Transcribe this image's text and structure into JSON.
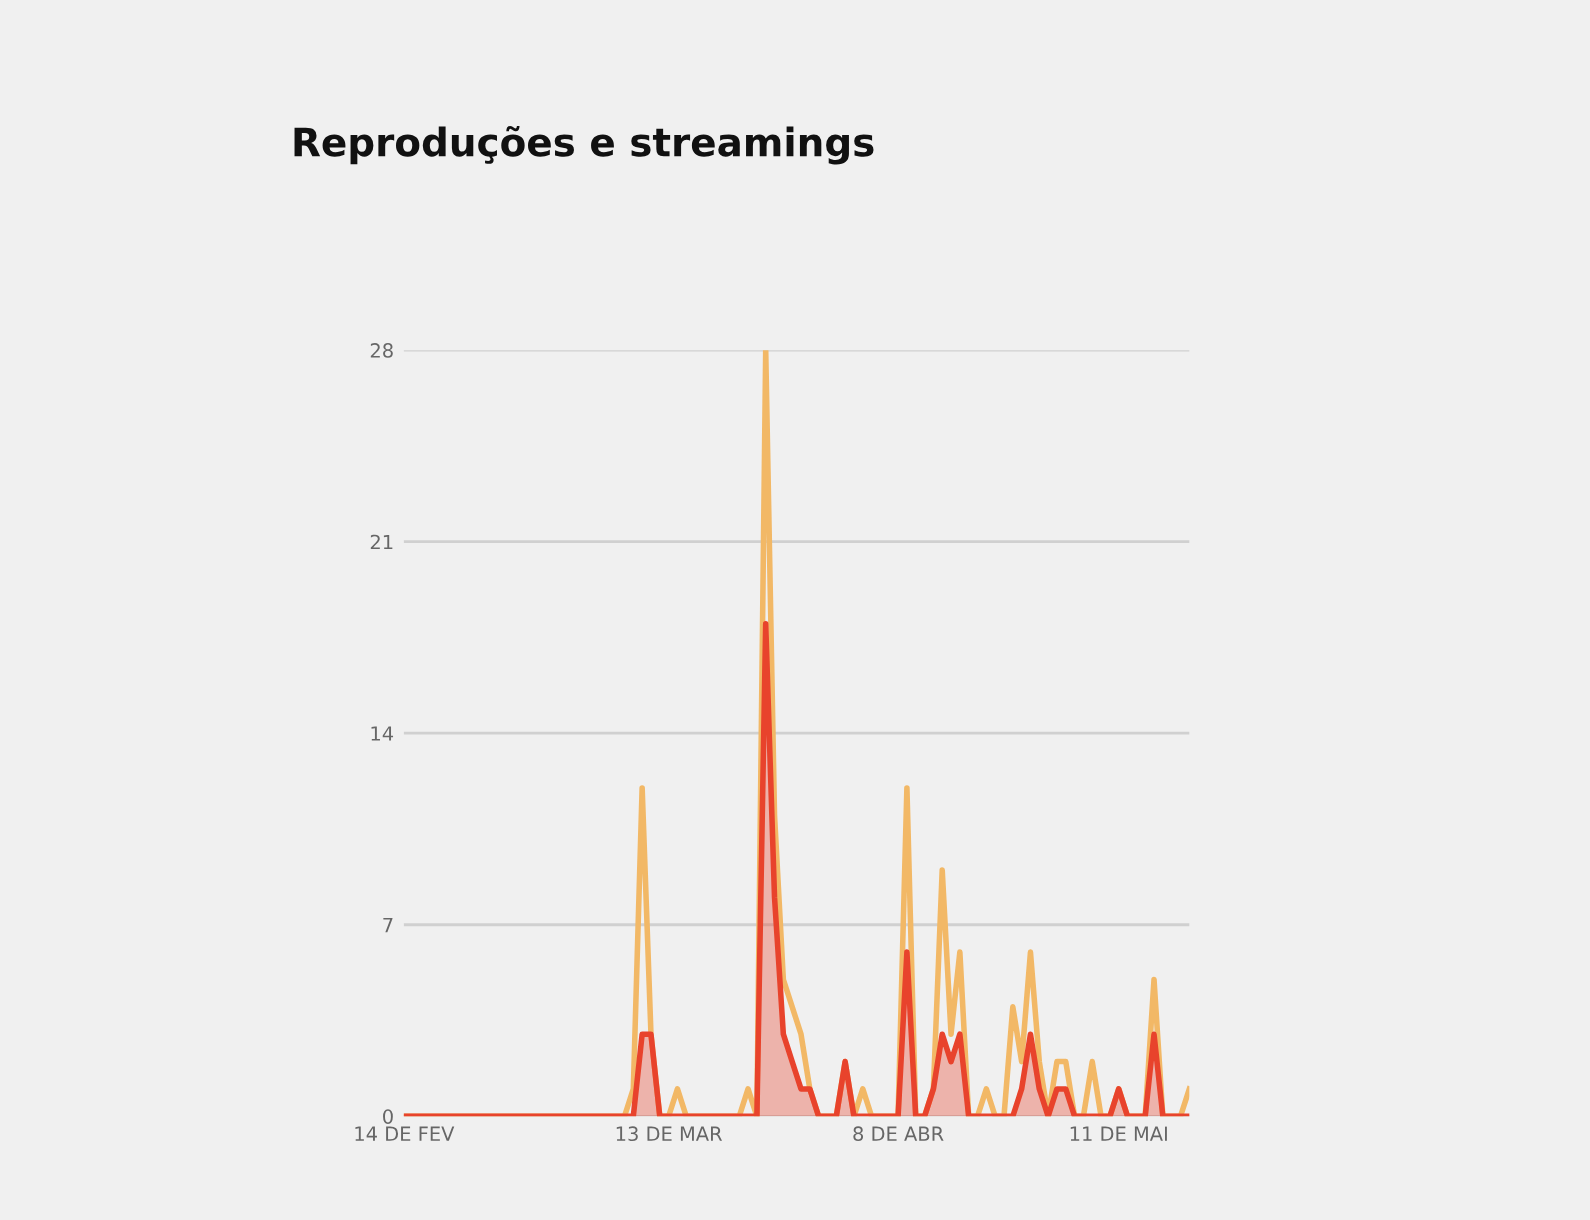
{
  "chart_data": {
    "type": "line",
    "title": "Reproduções e streamings",
    "categories": [
      "14 DE FEV",
      null,
      null,
      null,
      null,
      null,
      null,
      null,
      null,
      null,
      null,
      null,
      null,
      null,
      null,
      null,
      null,
      null,
      null,
      null,
      null,
      null,
      null,
      null,
      null,
      null,
      null,
      null,
      null,
      null,
      "13 DE MAR",
      null,
      null,
      null,
      null,
      null,
      null,
      null,
      null,
      null,
      null,
      null,
      null,
      null,
      null,
      null,
      null,
      null,
      null,
      null,
      null,
      null,
      null,
      null,
      null,
      null,
      "8 DE ABR",
      null,
      null,
      null,
      null,
      null,
      null,
      null,
      null,
      null,
      null,
      null,
      null,
      null,
      null,
      null,
      null,
      null,
      null,
      null,
      null,
      null,
      null,
      null,
      null,
      "11 DE MAI",
      null,
      null,
      null,
      null,
      null,
      null,
      null,
      null
    ],
    "series": [
      {
        "color": "#f2b866",
        "values": [
          0,
          0,
          0,
          0,
          0,
          0,
          0,
          0,
          0,
          0,
          0,
          0,
          0,
          0,
          0,
          0,
          0,
          0,
          0,
          0,
          0,
          0,
          0,
          0,
          0,
          0,
          1,
          12,
          3,
          0,
          0,
          1,
          0,
          0,
          0,
          0,
          0,
          0,
          0,
          1,
          0,
          28,
          11,
          5,
          4,
          3,
          1,
          0,
          0,
          0,
          2,
          0,
          1,
          0,
          0,
          0,
          0,
          12,
          0,
          0,
          1,
          9,
          3,
          6,
          0,
          0,
          1,
          0,
          0,
          4,
          2,
          6,
          2,
          0,
          2,
          2,
          0,
          0,
          2,
          0,
          0,
          1,
          0,
          0,
          0,
          5,
          0,
          0,
          0,
          1
        ]
      },
      {
        "type": "area",
        "color": "#e8432c",
        "values": [
          0,
          0,
          0,
          0,
          0,
          0,
          0,
          0,
          0,
          0,
          0,
          0,
          0,
          0,
          0,
          0,
          0,
          0,
          0,
          0,
          0,
          0,
          0,
          0,
          0,
          0,
          0,
          3,
          3,
          0,
          0,
          0,
          0,
          0,
          0,
          0,
          0,
          0,
          0,
          0,
          0,
          18,
          8,
          3,
          2,
          1,
          1,
          0,
          0,
          0,
          2,
          0,
          0,
          0,
          0,
          0,
          0,
          6,
          0,
          0,
          1,
          3,
          2,
          3,
          0,
          0,
          0,
          0,
          0,
          0,
          1,
          3,
          1,
          0,
          1,
          1,
          0,
          0,
          0,
          0,
          0,
          1,
          0,
          0,
          0,
          3,
          0,
          0,
          0,
          0
        ]
      }
    ],
    "ylim": [
      0,
      28
    ],
    "yticks": [
      0,
      7,
      14,
      21,
      28
    ],
    "grid": "y"
  }
}
